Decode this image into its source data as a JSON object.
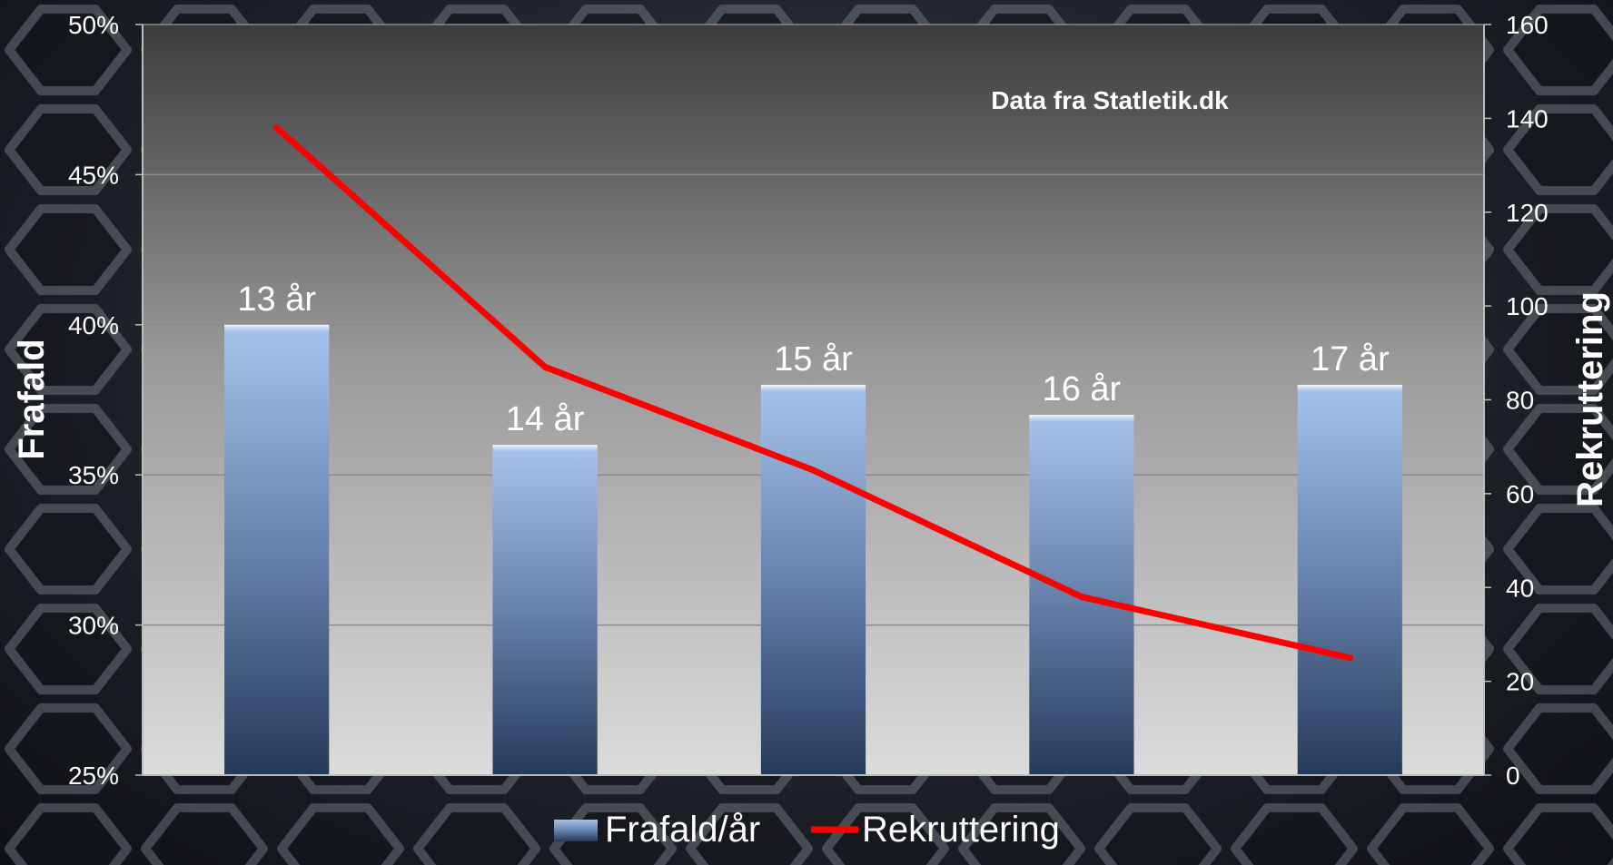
{
  "chart_data": {
    "type": "bar",
    "annotation": "Data fra Statletik.dk",
    "categories": [
      "13 år",
      "14 år",
      "15 år",
      "16 år",
      "17 år"
    ],
    "series": [
      {
        "name": "Frafald/år",
        "type": "bar",
        "axis": "left",
        "values": [
          0.4,
          0.36,
          0.38,
          0.37,
          0.38
        ]
      },
      {
        "name": "Rekruttering",
        "type": "line",
        "axis": "right",
        "values": [
          138,
          87,
          65,
          38,
          25
        ]
      }
    ],
    "y_left": {
      "label": "Frafald",
      "min": 0.25,
      "max": 0.5,
      "ticks": [
        "25%",
        "30%",
        "35%",
        "40%",
        "45%",
        "50%"
      ]
    },
    "y_right": {
      "label": "Rekruttering",
      "min": 0,
      "max": 160,
      "ticks": [
        "0",
        "20",
        "40",
        "60",
        "80",
        "100",
        "120",
        "140",
        "160"
      ]
    },
    "grid": true,
    "legend": "bottom",
    "colors": {
      "bar_top": "#a7c4ec",
      "bar_bottom": "#26395a",
      "line": "#ff0000",
      "plot_top": "#3c3c3c",
      "plot_bottom": "#dcdcdc",
      "text": "#ffffff"
    }
  }
}
